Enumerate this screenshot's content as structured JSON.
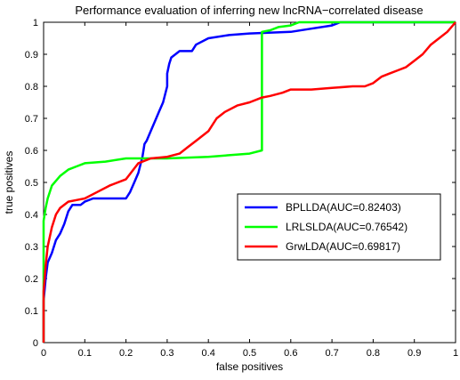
{
  "chart_data": {
    "type": "line",
    "title": "Performance evaluation of inferring new lncRNA−correlated disease",
    "xlabel": "false positives",
    "ylabel": "true positives",
    "xlim": [
      0,
      1
    ],
    "ylim": [
      0,
      1
    ],
    "xticks": [
      "0",
      "0.1",
      "0.2",
      "0.3",
      "0.4",
      "0.5",
      "0.6",
      "0.7",
      "0.8",
      "0.9",
      "1"
    ],
    "yticks": [
      "0",
      "0.1",
      "0.2",
      "0.3",
      "0.4",
      "0.5",
      "0.6",
      "0.7",
      "0.8",
      "0.9",
      "1"
    ],
    "grid": false,
    "legend_position": "right-middle",
    "series": [
      {
        "name": "BPLLDA(AUC=0.82403)",
        "color": "#0000ff",
        "points": [
          [
            0,
            0
          ],
          [
            0,
            0.13
          ],
          [
            0.005,
            0.2
          ],
          [
            0.01,
            0.25
          ],
          [
            0.02,
            0.28
          ],
          [
            0.03,
            0.32
          ],
          [
            0.04,
            0.34
          ],
          [
            0.05,
            0.37
          ],
          [
            0.06,
            0.41
          ],
          [
            0.07,
            0.43
          ],
          [
            0.09,
            0.43
          ],
          [
            0.1,
            0.44
          ],
          [
            0.12,
            0.45
          ],
          [
            0.15,
            0.45
          ],
          [
            0.2,
            0.45
          ],
          [
            0.21,
            0.47
          ],
          [
            0.22,
            0.5
          ],
          [
            0.23,
            0.53
          ],
          [
            0.24,
            0.58
          ],
          [
            0.245,
            0.62
          ],
          [
            0.25,
            0.63
          ],
          [
            0.26,
            0.66
          ],
          [
            0.27,
            0.69
          ],
          [
            0.28,
            0.72
          ],
          [
            0.29,
            0.75
          ],
          [
            0.3,
            0.8
          ],
          [
            0.3,
            0.84
          ],
          [
            0.305,
            0.87
          ],
          [
            0.31,
            0.89
          ],
          [
            0.32,
            0.9
          ],
          [
            0.33,
            0.91
          ],
          [
            0.36,
            0.91
          ],
          [
            0.37,
            0.93
          ],
          [
            0.4,
            0.95
          ],
          [
            0.45,
            0.96
          ],
          [
            0.5,
            0.965
          ],
          [
            0.6,
            0.97
          ],
          [
            0.65,
            0.98
          ],
          [
            0.7,
            0.99
          ],
          [
            0.72,
            1.0
          ],
          [
            0.9,
            1.0
          ],
          [
            1,
            1.0
          ]
        ]
      },
      {
        "name": "LRLSLDA(AUC=0.76542)",
        "color": "#00ff00",
        "points": [
          [
            0,
            0
          ],
          [
            0,
            0.38
          ],
          [
            0.005,
            0.42
          ],
          [
            0.01,
            0.45
          ],
          [
            0.02,
            0.49
          ],
          [
            0.04,
            0.52
          ],
          [
            0.06,
            0.54
          ],
          [
            0.08,
            0.55
          ],
          [
            0.1,
            0.56
          ],
          [
            0.15,
            0.565
          ],
          [
            0.2,
            0.575
          ],
          [
            0.3,
            0.575
          ],
          [
            0.4,
            0.58
          ],
          [
            0.45,
            0.585
          ],
          [
            0.5,
            0.59
          ],
          [
            0.53,
            0.6
          ],
          [
            0.53,
            0.97
          ],
          [
            0.55,
            0.975
          ],
          [
            0.57,
            0.985
          ],
          [
            0.6,
            0.99
          ],
          [
            0.62,
            1.0
          ],
          [
            1,
            1.0
          ]
        ]
      },
      {
        "name": "GrwLDA(AUC=0.69817)",
        "color": "#ff0000",
        "points": [
          [
            0,
            0
          ],
          [
            0,
            0.16
          ],
          [
            0.005,
            0.24
          ],
          [
            0.01,
            0.3
          ],
          [
            0.02,
            0.36
          ],
          [
            0.03,
            0.4
          ],
          [
            0.04,
            0.42
          ],
          [
            0.06,
            0.44
          ],
          [
            0.08,
            0.445
          ],
          [
            0.1,
            0.45
          ],
          [
            0.13,
            0.47
          ],
          [
            0.16,
            0.49
          ],
          [
            0.2,
            0.51
          ],
          [
            0.23,
            0.56
          ],
          [
            0.26,
            0.575
          ],
          [
            0.3,
            0.58
          ],
          [
            0.33,
            0.59
          ],
          [
            0.35,
            0.61
          ],
          [
            0.37,
            0.63
          ],
          [
            0.4,
            0.66
          ],
          [
            0.42,
            0.7
          ],
          [
            0.44,
            0.72
          ],
          [
            0.47,
            0.74
          ],
          [
            0.5,
            0.75
          ],
          [
            0.53,
            0.765
          ],
          [
            0.55,
            0.77
          ],
          [
            0.58,
            0.78
          ],
          [
            0.6,
            0.79
          ],
          [
            0.65,
            0.79
          ],
          [
            0.7,
            0.795
          ],
          [
            0.75,
            0.8
          ],
          [
            0.78,
            0.8
          ],
          [
            0.8,
            0.81
          ],
          [
            0.82,
            0.83
          ],
          [
            0.84,
            0.84
          ],
          [
            0.86,
            0.85
          ],
          [
            0.88,
            0.86
          ],
          [
            0.9,
            0.88
          ],
          [
            0.92,
            0.9
          ],
          [
            0.94,
            0.93
          ],
          [
            0.96,
            0.95
          ],
          [
            0.98,
            0.97
          ],
          [
            1,
            1.0
          ]
        ]
      }
    ]
  }
}
